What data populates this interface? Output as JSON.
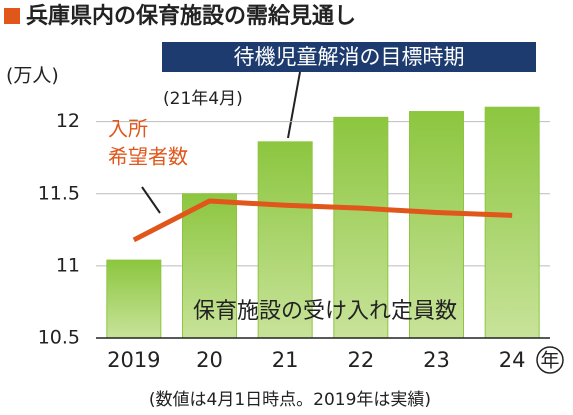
{
  "chart_data": {
    "type": "bar-line",
    "title": "兵庫県内の保育施設の需給見通し",
    "y_axis_label": "(万人)",
    "x_unit": "年",
    "categories": [
      "2019",
      "20",
      "21",
      "22",
      "23",
      "24"
    ],
    "series": [
      {
        "name": "保育施設の受け入れ定員数",
        "type": "bar",
        "color": "#8cc63f",
        "values": [
          11.04,
          11.5,
          11.86,
          12.03,
          12.07,
          12.1
        ]
      },
      {
        "type": "line",
        "color": "#e0561b",
        "values": [
          11.18,
          11.45,
          11.42,
          11.4,
          11.37,
          11.35
        ]
      }
    ],
    "line_label": [
      "入所",
      "希望者数"
    ],
    "annotation": "待機児童解消の目標時期",
    "annotation_sub": "(21年4月)",
    "note": "(数値は4月1日時点。2019年は実績)",
    "ylim": [
      10.5,
      12.15
    ],
    "yticks": [
      10.5,
      11,
      11.5,
      12
    ],
    "grid": true
  }
}
